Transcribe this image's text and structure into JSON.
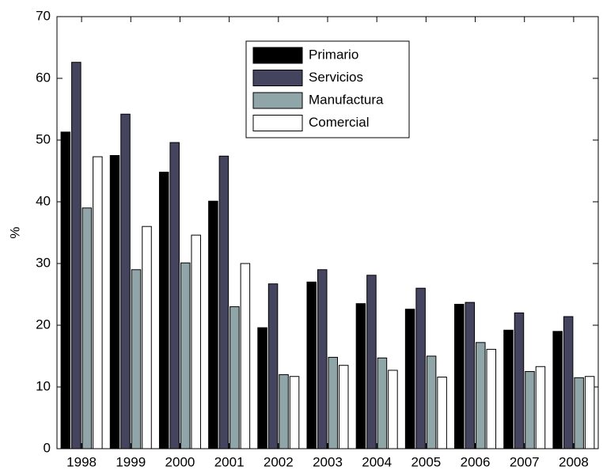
{
  "chart_data": {
    "type": "bar",
    "y_label": "%",
    "categories": [
      "1998",
      "1999",
      "2000",
      "2001",
      "2002",
      "2003",
      "2004",
      "2005",
      "2006",
      "2007",
      "2008"
    ],
    "series": [
      {
        "name": "Primario",
        "color": "#000000",
        "values": [
          51.3,
          47.5,
          44.8,
          40.1,
          19.6,
          27,
          23.5,
          22.6,
          23.4,
          19.2,
          19
        ]
      },
      {
        "name": "Servicios",
        "color": "#44445e",
        "values": [
          62.6,
          54.2,
          49.6,
          47.4,
          26.7,
          29,
          28.1,
          26,
          23.7,
          22,
          21.4
        ]
      },
      {
        "name": "Manufactura",
        "color": "#8fa5a8",
        "values": [
          39,
          29,
          30.1,
          23,
          12,
          14.8,
          14.7,
          15,
          17.2,
          12.5,
          11.5
        ]
      },
      {
        "name": "Comercial",
        "color": "#ffffff",
        "values": [
          47.3,
          36,
          34.6,
          30,
          11.7,
          13.5,
          12.7,
          11.6,
          16.1,
          13.3,
          11.7
        ]
      }
    ],
    "ylim": [
      0,
      70
    ],
    "yticks": [
      0,
      10,
      20,
      30,
      40,
      50,
      60,
      70
    ],
    "legend": "upper center"
  }
}
